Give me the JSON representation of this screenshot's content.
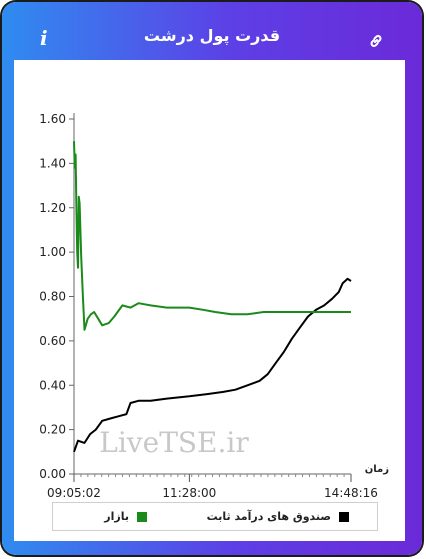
{
  "header": {
    "title": "قدرت پول درشت",
    "info_icon": "info-icon",
    "link_icon": "link-icon"
  },
  "watermark": "LiveTSE.ir",
  "chart_data": {
    "type": "line",
    "y_ticks": [
      "0.00",
      "0.20",
      "0.40",
      "0.60",
      "0.80",
      "1.00",
      "1.20",
      "1.40",
      "1.60"
    ],
    "ylim": [
      0,
      1.6
    ],
    "x_ticks": [
      "09:05:02",
      "11:28:00",
      "14:48:16"
    ],
    "xlabel": "زمان",
    "legend_position": "bottom",
    "series": [
      {
        "name": "صندوق های درآمد ثابت",
        "color": "#000000",
        "points": [
          [
            "09:05:02",
            0.1
          ],
          [
            "09:10",
            0.15
          ],
          [
            "09:18",
            0.14
          ],
          [
            "09:25",
            0.18
          ],
          [
            "09:32",
            0.2
          ],
          [
            "09:40",
            0.24
          ],
          [
            "09:50",
            0.25
          ],
          [
            "10:00",
            0.26
          ],
          [
            "10:10",
            0.27
          ],
          [
            "10:15",
            0.32
          ],
          [
            "10:25",
            0.33
          ],
          [
            "10:40",
            0.33
          ],
          [
            "11:00",
            0.34
          ],
          [
            "11:28:00",
            0.35
          ],
          [
            "11:50",
            0.36
          ],
          [
            "12:10",
            0.37
          ],
          [
            "12:25",
            0.38
          ],
          [
            "12:40",
            0.4
          ],
          [
            "12:55",
            0.42
          ],
          [
            "13:05",
            0.45
          ],
          [
            "13:15",
            0.5
          ],
          [
            "13:25",
            0.55
          ],
          [
            "13:35",
            0.61
          ],
          [
            "13:45",
            0.66
          ],
          [
            "13:55",
            0.71
          ],
          [
            "14:05",
            0.74
          ],
          [
            "14:15",
            0.76
          ],
          [
            "14:25",
            0.79
          ],
          [
            "14:33",
            0.82
          ],
          [
            "14:38",
            0.86
          ],
          [
            "14:44",
            0.88
          ],
          [
            "14:48:16",
            0.87
          ]
        ]
      },
      {
        "name": "بازار",
        "color": "#1a8a1a",
        "points": [
          [
            "09:05:02",
            1.5
          ],
          [
            "09:06",
            1.38
          ],
          [
            "09:07",
            1.44
          ],
          [
            "09:08",
            1.2
          ],
          [
            "09:09",
            1.0
          ],
          [
            "09:10",
            0.93
          ],
          [
            "09:11",
            1.25
          ],
          [
            "09:12",
            1.22
          ],
          [
            "09:14",
            0.98
          ],
          [
            "09:16",
            0.8
          ],
          [
            "09:18",
            0.65
          ],
          [
            "09:22",
            0.7
          ],
          [
            "09:26",
            0.72
          ],
          [
            "09:30",
            0.73
          ],
          [
            "09:35",
            0.7
          ],
          [
            "09:40",
            0.67
          ],
          [
            "09:48",
            0.68
          ],
          [
            "09:55",
            0.71
          ],
          [
            "10:05",
            0.76
          ],
          [
            "10:15",
            0.75
          ],
          [
            "10:25",
            0.77
          ],
          [
            "10:40",
            0.76
          ],
          [
            "11:00",
            0.75
          ],
          [
            "11:28:00",
            0.75
          ],
          [
            "11:45",
            0.74
          ],
          [
            "12:00",
            0.73
          ],
          [
            "12:20",
            0.72
          ],
          [
            "12:40",
            0.72
          ],
          [
            "13:00",
            0.73
          ],
          [
            "13:30",
            0.73
          ],
          [
            "14:00",
            0.73
          ],
          [
            "14:48:16",
            0.73
          ]
        ]
      }
    ]
  }
}
